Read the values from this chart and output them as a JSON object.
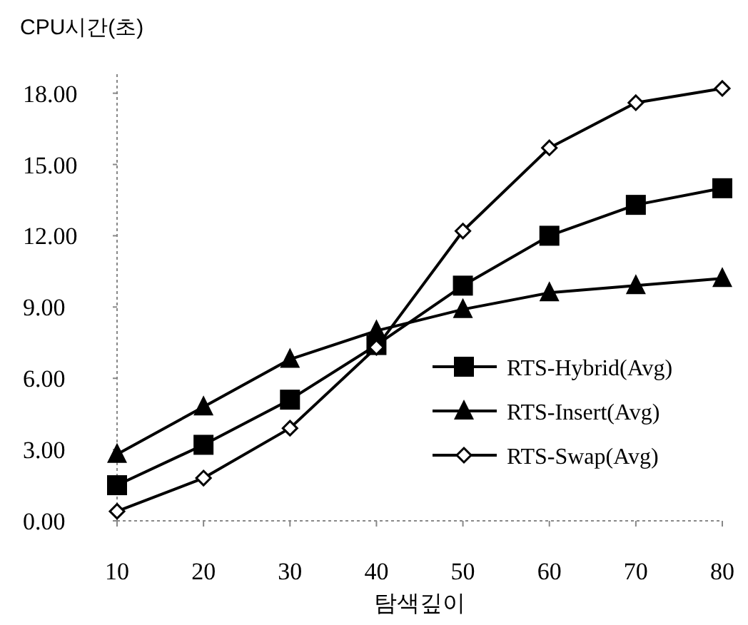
{
  "chart_data": {
    "type": "line",
    "ylabel": "CPU시간(초)",
    "xlabel": "탐색깊이",
    "categories": [
      "10",
      "20",
      "30",
      "40",
      "50",
      "60",
      "70",
      "80"
    ],
    "ylim": [
      0,
      18.8
    ],
    "yticks": [
      {
        "value": 0,
        "label": "0.00"
      },
      {
        "value": 3,
        "label": "3.00"
      },
      {
        "value": 6,
        "label": "6.00"
      },
      {
        "value": 9,
        "label": "9.00"
      },
      {
        "value": 12,
        "label": "12.00"
      },
      {
        "value": 15,
        "label": "15.00"
      },
      {
        "value": 18,
        "label": "18.00"
      }
    ],
    "legend": "right",
    "grid": false,
    "series": [
      {
        "name": "RTS-Hybrid(Avg)",
        "color": "#000000",
        "marker": "square",
        "values": [
          1.5,
          3.2,
          5.1,
          7.4,
          9.9,
          12.0,
          13.3,
          14.0
        ]
      },
      {
        "name": "RTS-Insert(Avg)",
        "color": "#000000",
        "marker": "triangle",
        "values": [
          2.8,
          4.8,
          6.8,
          8.0,
          8.9,
          9.6,
          9.9,
          10.2
        ]
      },
      {
        "name": "RTS-Swap(Avg)",
        "color": "#000000",
        "marker": "diamond",
        "values": [
          0.4,
          1.8,
          3.9,
          7.3,
          12.2,
          15.7,
          17.6,
          18.2
        ]
      }
    ]
  }
}
